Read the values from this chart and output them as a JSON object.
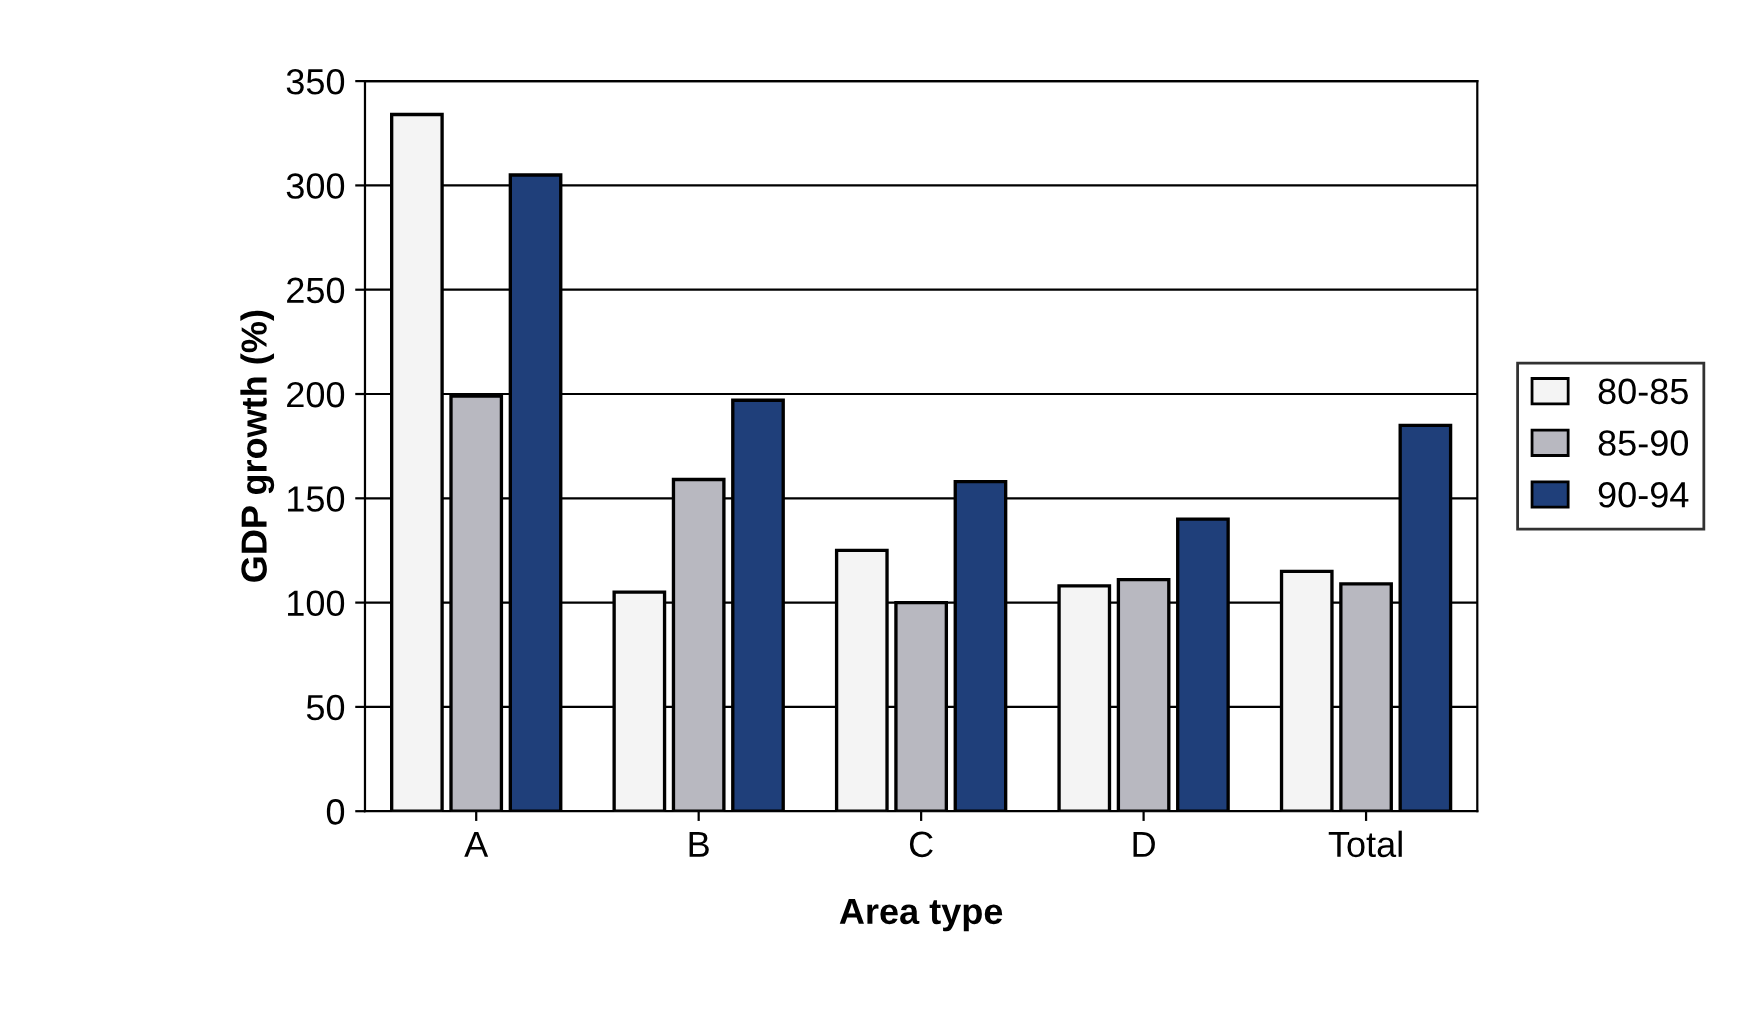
{
  "chart_data": {
    "type": "bar",
    "xlabel": "Area type",
    "ylabel": "GDP growth (%)",
    "categories": [
      "A",
      "B",
      "C",
      "D",
      "Total"
    ],
    "series": [
      {
        "name": "80-85",
        "color": "#f4f4f4",
        "values": [
          334,
          105,
          125,
          108,
          115
        ]
      },
      {
        "name": "85-90",
        "color": "#b8b8c0",
        "values": [
          199,
          159,
          100,
          111,
          109
        ]
      },
      {
        "name": "90-94",
        "color": "#1f3f7a",
        "values": [
          305,
          197,
          158,
          140,
          185
        ]
      }
    ],
    "ylim": [
      0,
      350
    ],
    "yticks": [
      0,
      50,
      100,
      150,
      200,
      250,
      300,
      350
    ],
    "grid": "y",
    "legend": "right"
  }
}
